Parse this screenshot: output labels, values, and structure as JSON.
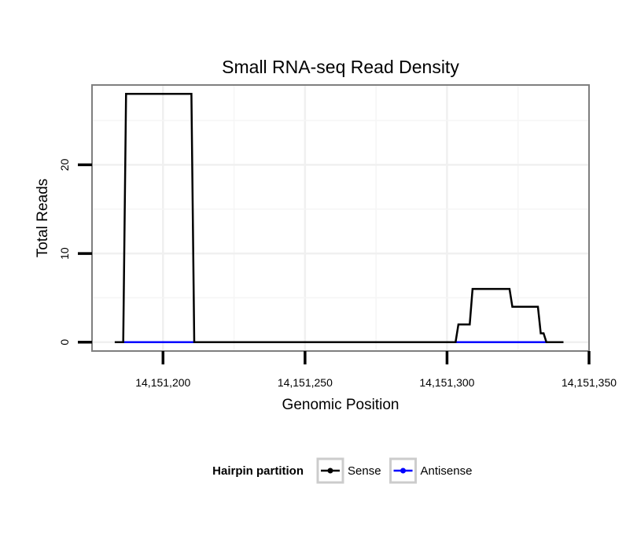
{
  "chart_data": {
    "type": "line",
    "title": "Small RNA-seq Read Density",
    "xlabel": "Genomic Position",
    "ylabel": "Total Reads",
    "xlim": [
      14151175,
      14151350
    ],
    "ylim": [
      -1,
      29
    ],
    "x_ticks": [
      14151200,
      14151250,
      14151300,
      14151350
    ],
    "x_tick_labels": [
      "14,151,200",
      "14,151,250",
      "14,151,300",
      "14,151,350"
    ],
    "y_ticks": [
      0,
      10,
      20
    ],
    "y_tick_labels": [
      "0",
      "10",
      "20"
    ],
    "grid": true,
    "legend": {
      "title": "Hairpin partition",
      "position": "bottom",
      "entries": [
        {
          "name": "Sense",
          "color": "#000000"
        },
        {
          "name": "Antisense",
          "color": "#0000ff"
        }
      ]
    },
    "series": [
      {
        "name": "Sense",
        "color": "#000000",
        "x": [
          14151183,
          14151186,
          14151187,
          14151210,
          14151211,
          14151303,
          14151304,
          14151308,
          14151309,
          14151322,
          14151323,
          14151332,
          14151333,
          14151334,
          14151335,
          14151341
        ],
        "y": [
          0,
          0,
          28,
          28,
          0,
          0,
          2,
          2,
          6,
          6,
          4,
          4,
          1,
          1,
          0,
          0
        ]
      },
      {
        "name": "Antisense",
        "color": "#0000ff",
        "x": [
          14151186,
          14151335
        ],
        "y": [
          0,
          0
        ]
      }
    ]
  }
}
